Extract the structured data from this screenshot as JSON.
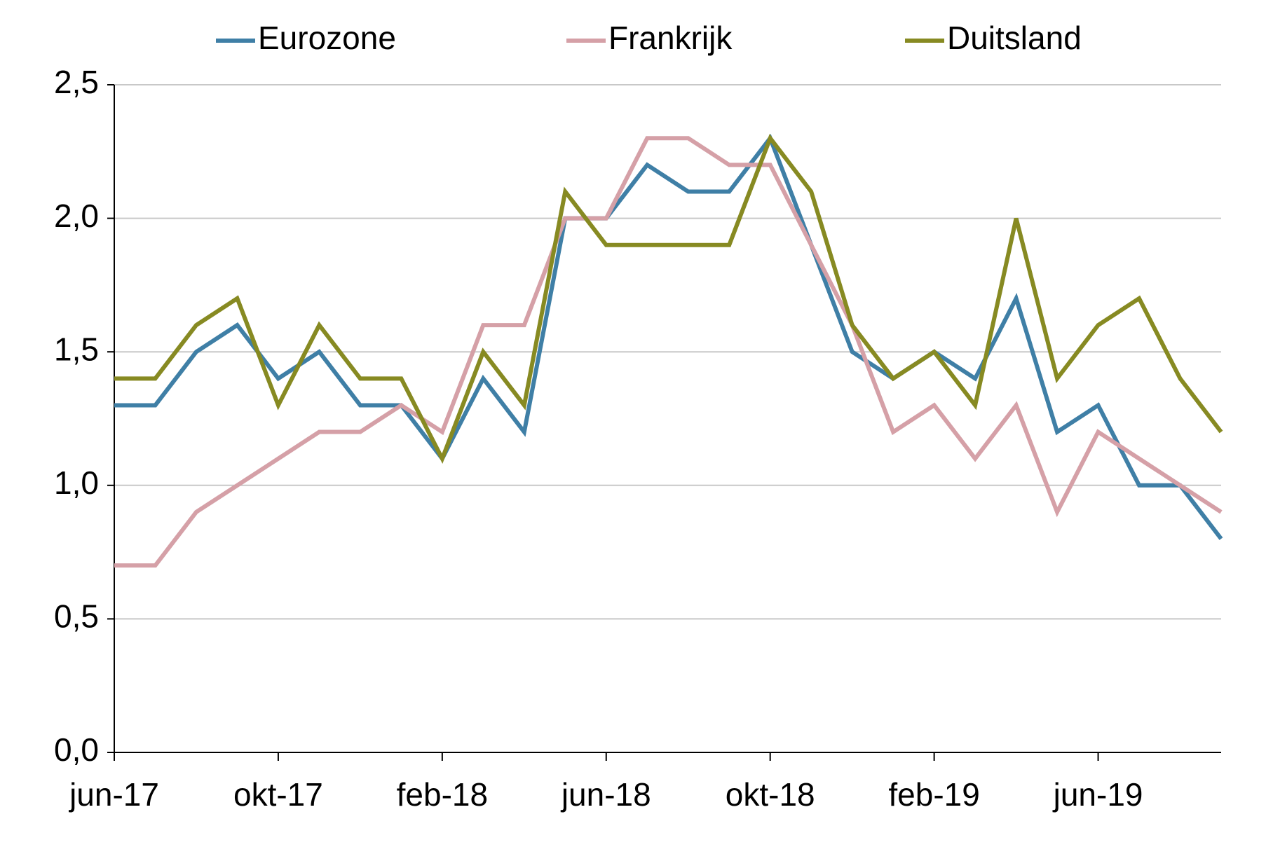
{
  "chart_data": {
    "type": "line",
    "categories": [
      "jun-17",
      null,
      null,
      null,
      "okt-17",
      null,
      null,
      null,
      "feb-18",
      null,
      null,
      null,
      "jun-18",
      null,
      null,
      null,
      "okt-18",
      null,
      null,
      null,
      "feb-19",
      null,
      null,
      null,
      "jun-19",
      null,
      null,
      null
    ],
    "series": [
      {
        "name": "Eurozone",
        "color": "#3f7fa6",
        "values": [
          1.3,
          1.3,
          1.5,
          1.6,
          1.4,
          1.5,
          1.3,
          1.3,
          1.1,
          1.4,
          1.2,
          2.0,
          2.0,
          2.2,
          2.1,
          2.1,
          2.3,
          1.9,
          1.5,
          1.4,
          1.5,
          1.4,
          1.7,
          1.2,
          1.3,
          1.0,
          1.0,
          0.8
        ]
      },
      {
        "name": "Frankrijk",
        "color": "#d5a0a7",
        "values": [
          0.7,
          0.7,
          0.9,
          1.0,
          1.1,
          1.2,
          1.2,
          1.3,
          1.2,
          1.6,
          1.6,
          2.0,
          2.0,
          2.3,
          2.3,
          2.2,
          2.2,
          1.9,
          1.6,
          1.2,
          1.3,
          1.1,
          1.3,
          0.9,
          1.2,
          1.1,
          1.0,
          0.9
        ]
      },
      {
        "name": "Duitsland",
        "color": "#878a22",
        "values": [
          1.4,
          1.4,
          1.6,
          1.7,
          1.3,
          1.6,
          1.4,
          1.4,
          1.1,
          1.5,
          1.3,
          2.1,
          1.9,
          1.9,
          1.9,
          1.9,
          2.3,
          2.1,
          1.6,
          1.4,
          1.5,
          1.3,
          2.0,
          1.4,
          1.6,
          1.7,
          1.4,
          1.2
        ]
      }
    ],
    "ylim": [
      0,
      2.5
    ],
    "yticks": [
      {
        "value": 0,
        "label": "0,0"
      },
      {
        "value": 0.5,
        "label": "0,5"
      },
      {
        "value": 1,
        "label": "1,0"
      },
      {
        "value": 1.5,
        "label": "1,5"
      },
      {
        "value": 2,
        "label": "2,0"
      },
      {
        "value": 2.5,
        "label": "2,5"
      }
    ],
    "grid": true,
    "legend": "top"
  }
}
